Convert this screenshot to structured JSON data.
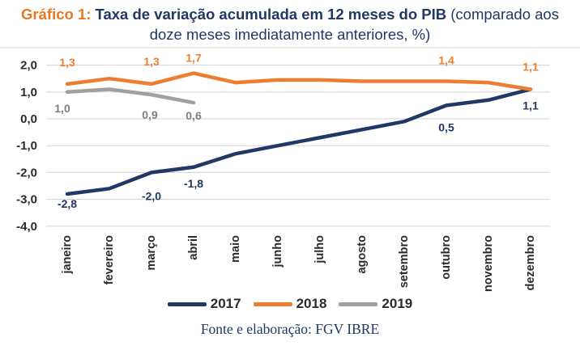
{
  "title": {
    "prefix": "Gráfico 1:",
    "main": "Taxa de variação acumulada em 12 meses do PIB",
    "paren_start": "(comparado aos",
    "paren_end": "doze meses imediatamente anteriores, %)"
  },
  "footer": "Fonte e elaboração: FGV IBRE",
  "colors": {
    "accent_orange": "#E87722",
    "accent_navy": "#1F3864",
    "grid": "#D9D9D9",
    "axis_text": "#2B2B2B",
    "divider": "#E2E2E2"
  },
  "chart_data": {
    "type": "line",
    "title": "Taxa de variação acumulada em 12 meses do PIB (comparado aos doze meses imediatamente anteriores, %)",
    "categories": [
      "janeiro",
      "fevereiro",
      "março",
      "abril",
      "maio",
      "junho",
      "julho",
      "agosto",
      "setembro",
      "outubro",
      "novembro",
      "dezembro"
    ],
    "y_ticks": [
      "2,0",
      "1,0",
      "0,0",
      "-1,0",
      "-2,0",
      "-3,0",
      "-4,0"
    ],
    "ylim": [
      -4.0,
      2.0
    ],
    "grid": true,
    "legend_position": "bottom-center",
    "series": [
      {
        "name": "2017",
        "color": "#1F3864",
        "values": [
          -2.8,
          -2.6,
          -2.0,
          -1.8,
          -1.3,
          -1.0,
          -0.7,
          -0.4,
          -0.1,
          0.5,
          0.7,
          1.1
        ],
        "labels": [
          {
            "i": 0,
            "text": "-2,8",
            "dy": 17
          },
          {
            "i": 2,
            "text": "-2,0",
            "dy": 34
          },
          {
            "i": 3,
            "text": "-1,8",
            "dy": 25
          },
          {
            "i": 9,
            "text": "0,5",
            "dy": 32
          },
          {
            "i": 11,
            "text": "1,1",
            "dy": 25
          }
        ]
      },
      {
        "name": "2018",
        "color": "#ED7D31",
        "values": [
          1.3,
          1.5,
          1.3,
          1.7,
          1.35,
          1.45,
          1.45,
          1.4,
          1.4,
          1.4,
          1.35,
          1.1
        ],
        "labels": [
          {
            "i": 0,
            "text": "1,3",
            "dy": -22
          },
          {
            "i": 2,
            "text": "1,3",
            "dy": -23
          },
          {
            "i": 3,
            "text": "1,7",
            "dy": -14
          },
          {
            "i": 9,
            "text": "1,4",
            "dy": -21
          },
          {
            "i": 11,
            "text": "1,1",
            "dy": -23
          }
        ]
      },
      {
        "name": "2019",
        "color": "#A0A0A0",
        "label_color": "#7F7F7F",
        "values": [
          1.0,
          1.1,
          0.9,
          0.6
        ],
        "labels": [
          {
            "i": 0,
            "text": "1,0",
            "dy": 25,
            "dx": -6
          },
          {
            "i": 2,
            "text": "0,9",
            "dy": 30,
            "dx": -2
          },
          {
            "i": 3,
            "text": "0,6",
            "dy": 21
          }
        ]
      }
    ]
  }
}
